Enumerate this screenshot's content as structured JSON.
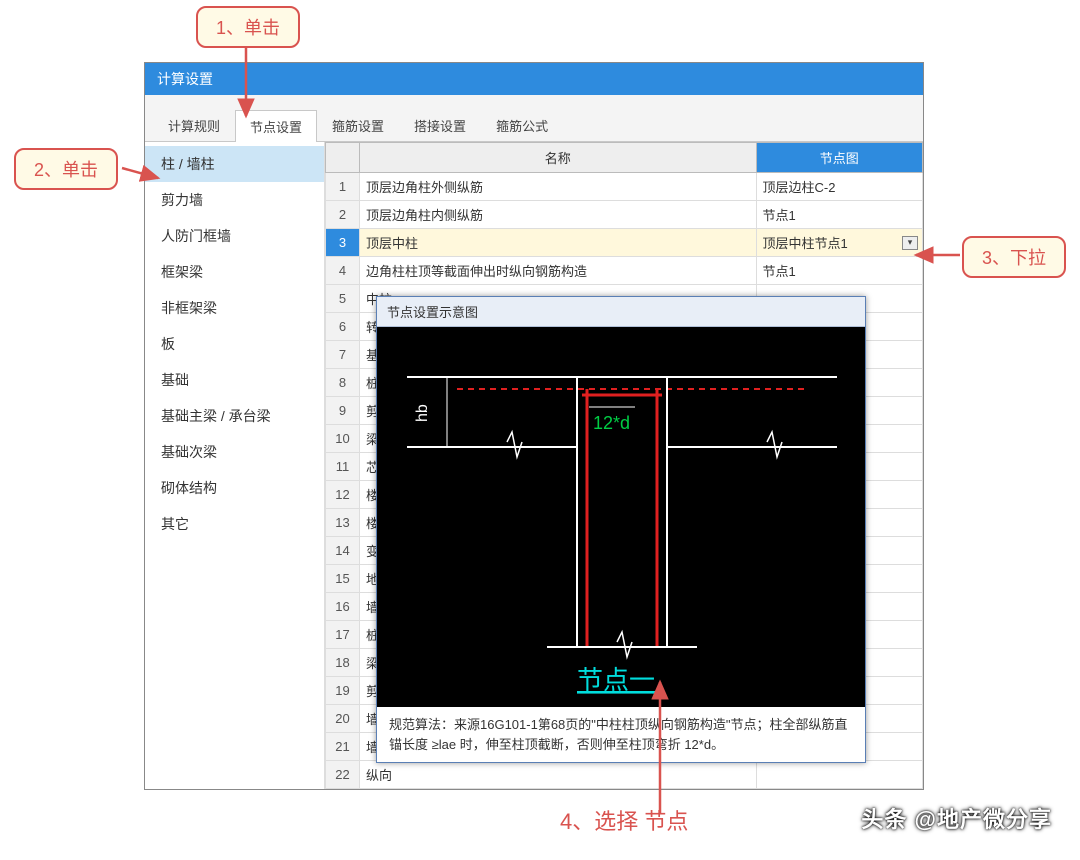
{
  "dialog": {
    "title": "计算设置"
  },
  "tabs": [
    "计算规则",
    "节点设置",
    "箍筋设置",
    "搭接设置",
    "箍筋公式"
  ],
  "active_tab_index": 1,
  "sidebar": {
    "items": [
      "柱 / 墙柱",
      "剪力墙",
      "人防门框墙",
      "框架梁",
      "非框架梁",
      "板",
      "基础",
      "基础主梁 / 承台梁",
      "基础次梁",
      "砌体结构",
      "其它"
    ],
    "active_index": 0
  },
  "table": {
    "columns": [
      "名称",
      "节点图"
    ],
    "rows": [
      {
        "n": 1,
        "name": "顶层边角柱外侧纵筋",
        "node": "顶层边柱C-2"
      },
      {
        "n": 2,
        "name": "顶层边角柱内侧纵筋",
        "node": "节点1"
      },
      {
        "n": 3,
        "name": "顶层中柱",
        "node": "顶层中柱节点1",
        "selected": true,
        "dropdown": true
      },
      {
        "n": 4,
        "name": "边角柱柱顶等截面伸出时纵向钢筋构造",
        "node": "节点1"
      },
      {
        "n": 5,
        "name": "中柱",
        "node": ""
      },
      {
        "n": 6,
        "name": "转换",
        "node": ""
      },
      {
        "n": 7,
        "name": "基础",
        "node": ""
      },
      {
        "n": 8,
        "name": "桩上",
        "node": ""
      },
      {
        "n": 9,
        "name": "剪力",
        "node": ""
      },
      {
        "n": 10,
        "name": "梁上",
        "node": ""
      },
      {
        "n": 11,
        "name": "芯柱",
        "node": ""
      },
      {
        "n": 12,
        "name": "楼层",
        "node": ""
      },
      {
        "n": 13,
        "name": "楼层",
        "node": ""
      },
      {
        "n": 14,
        "name": "变截",
        "node": ""
      },
      {
        "n": 15,
        "name": "地下",
        "node": ""
      },
      {
        "n": 16,
        "name": "墙柱",
        "node": ""
      },
      {
        "n": 17,
        "name": "桩上",
        "node": ""
      },
      {
        "n": 18,
        "name": "梁上",
        "node": ""
      },
      {
        "n": 19,
        "name": "剪力",
        "node": ""
      },
      {
        "n": 20,
        "name": "墙柱",
        "node": ""
      },
      {
        "n": 21,
        "name": "墙柱",
        "node": ""
      },
      {
        "n": 22,
        "name": "纵向",
        "node": ""
      }
    ]
  },
  "popup": {
    "title": "节点设置示意图",
    "diagram": {
      "bg": "#000000",
      "label_12d": "12*d",
      "label_hb": "hb",
      "node_label": "节点一",
      "colors": {
        "main_line": "#ffffff",
        "red_line": "#e02020",
        "green_text": "#00cc44",
        "cyan_text": "#00dddd"
      }
    },
    "footer": "规范算法：来源16G101-1第68页的\"中柱柱顶纵向钢筋构造\"节点；柱全部纵筋直锚长度 ≥lae 时，伸至柱顶截断，否则伸至柱顶弯折 12*d。"
  },
  "callouts": {
    "c1": "1、单击",
    "c2": "2、单击",
    "c3": "3、下拉",
    "c4": "4、选择 节点"
  },
  "watermark": "头条 @地产微分享",
  "colors": {
    "title_bg": "#2e8bde",
    "callout_bg": "#fffae6",
    "callout_border": "#d9534f",
    "sidebar_active": "#cce5f6",
    "row_select": "#fff8dc"
  }
}
